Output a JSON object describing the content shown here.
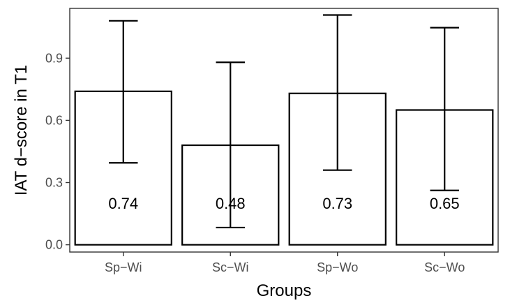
{
  "chart_data": {
    "type": "bar",
    "title": "",
    "xlabel": "Groups",
    "ylabel": "IAT d−score in T1",
    "categories": [
      "Sp−Wi",
      "Sc−Wi",
      "Sp−Wo",
      "Sc−Wo"
    ],
    "values": [
      0.74,
      0.48,
      0.73,
      0.65
    ],
    "value_labels": [
      "0.74",
      "0.48",
      "0.73",
      "0.65"
    ],
    "error_low": [
      0.395,
      0.083,
      0.36,
      0.262
    ],
    "error_high": [
      1.08,
      0.88,
      1.108,
      1.047
    ],
    "ylim": [
      -0.035,
      1.14
    ],
    "yticks": [
      0.0,
      0.3,
      0.6,
      0.9
    ],
    "ytick_labels": [
      "0.0",
      "0.3",
      "0.6",
      "0.9"
    ],
    "grid": false,
    "legend": "none",
    "colors": {
      "bar_fill": "#ffffff",
      "bar_stroke": "#000000",
      "axis_text": "#4d4d4d"
    }
  }
}
